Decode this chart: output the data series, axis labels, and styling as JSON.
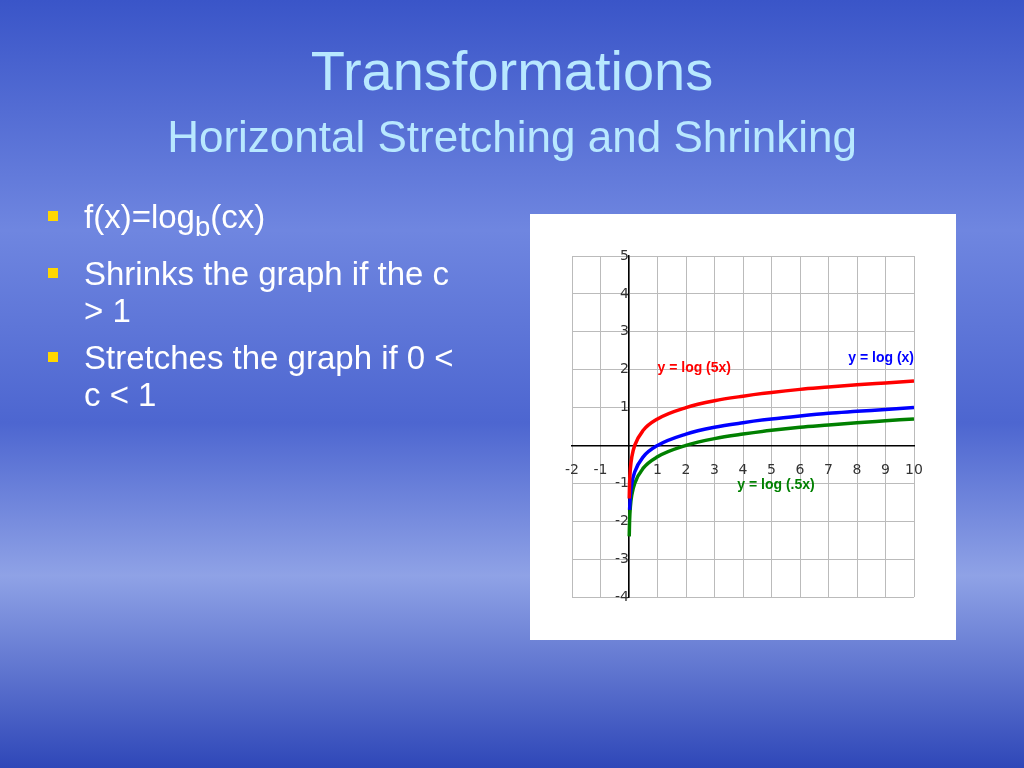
{
  "chart_data": {
    "type": "line",
    "title": "Transformations",
    "subtitle": "Horizontal Stretching and Shrinking",
    "annotations": [
      "f(x)=log$_{b}$(cx)",
      "Shrinks the graph if the c > 1",
      "Stretches the graph if 0 < c < 1"
    ],
    "series": [
      {
        "name": "y = log (5x)",
        "color": "#ff0000",
        "x": [
          0.008,
          0.02,
          0.05,
          0.1,
          0.2,
          0.5,
          1,
          2,
          3,
          4,
          5,
          6,
          7,
          8,
          9,
          10
        ],
        "values": [
          -1.4,
          -1.0,
          -0.6,
          -0.3,
          0,
          0.4,
          0.7,
          1.0,
          1.18,
          1.3,
          1.4,
          1.48,
          1.54,
          1.6,
          1.65,
          1.7
        ]
      },
      {
        "name": "y = log (x)",
        "color": "#0000ff",
        "x": [
          0.02,
          0.05,
          0.1,
          0.2,
          0.5,
          1,
          2,
          3,
          4,
          5,
          6,
          7,
          8,
          9,
          10
        ],
        "values": [
          -1.7,
          -1.3,
          -1,
          -0.7,
          -0.3,
          0,
          0.3,
          0.48,
          0.6,
          0.7,
          0.78,
          0.85,
          0.9,
          0.95,
          1
        ]
      },
      {
        "name": "y = log (.5x)",
        "color": "#008000",
        "x": [
          0.008,
          0.02,
          0.05,
          0.1,
          0.2,
          0.5,
          1,
          2,
          3,
          4,
          5,
          6,
          7,
          8,
          9,
          10
        ],
        "values": [
          -2.4,
          -2,
          -1.6,
          -1.3,
          -1,
          -0.6,
          -0.3,
          0,
          0.18,
          0.3,
          0.4,
          0.48,
          0.54,
          0.6,
          0.65,
          0.7
        ]
      }
    ],
    "xlim": [
      -2,
      10
    ],
    "ylim": [
      -4,
      5
    ],
    "xticks": [
      -2,
      -1,
      {
        "value": 0,
        "label": null
      },
      1,
      2,
      3,
      4,
      5,
      6,
      7,
      8,
      9,
      10
    ],
    "yticks": [
      -4,
      -3,
      -2,
      -1,
      {
        "value": 0,
        "label": null
      },
      1,
      2,
      3,
      4,
      5
    ],
    "grid": true,
    "legend": false,
    "marker": "none",
    "line_style": "solid"
  }
}
